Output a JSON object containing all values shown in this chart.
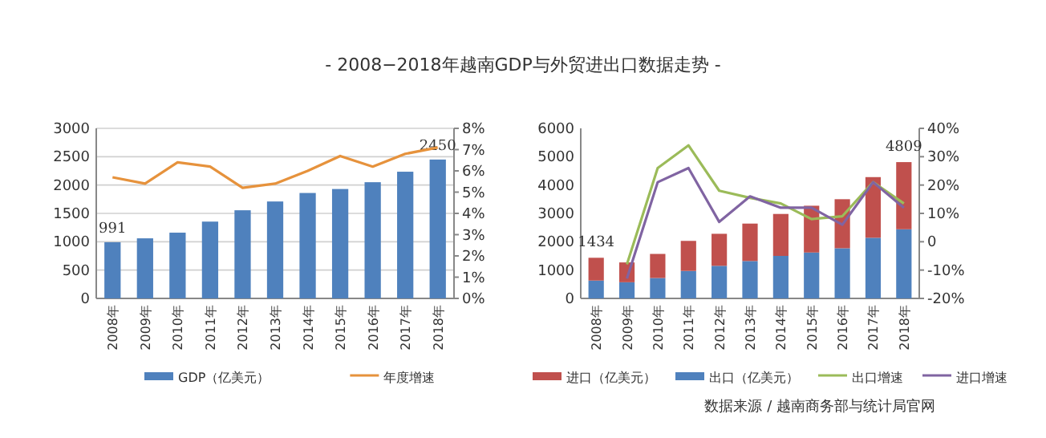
{
  "chart_data": [
    {
      "type": "bar",
      "title": "- 2008−2018年越南GDP与外贸进出口数据走势 -",
      "categories": [
        "2008年",
        "2009年",
        "2010年",
        "2011年",
        "2012年",
        "2013年",
        "2014年",
        "2015年",
        "2016年",
        "2017年",
        "2018年"
      ],
      "series": [
        {
          "name": "GDP（亿美元）",
          "color": "#4f81bd",
          "values": [
            991,
            1060,
            1160,
            1355,
            1555,
            1710,
            1860,
            1930,
            2050,
            2235,
            2450
          ],
          "value_labels": [
            "991",
            null,
            null,
            null,
            null,
            null,
            null,
            null,
            null,
            null,
            "2450"
          ]
        },
        {
          "name": "年度增速",
          "type": "line",
          "axis": "y2",
          "color": "#e6923c",
          "values": [
            5.7,
            5.4,
            6.4,
            6.2,
            5.2,
            5.4,
            6.0,
            6.7,
            6.2,
            6.8,
            7.1
          ]
        }
      ],
      "ylim": [
        0,
        3000
      ],
      "yticks": [
        0,
        500,
        1000,
        1500,
        2000,
        2500,
        3000
      ],
      "y2lim": [
        0,
        8
      ],
      "y2ticks": [
        {
          "value": 0,
          "label": "0%"
        },
        {
          "value": 1,
          "label": "1%"
        },
        {
          "value": 2,
          "label": "2%"
        },
        {
          "value": 3,
          "label": "3%"
        },
        {
          "value": 4,
          "label": "4%"
        },
        {
          "value": 5,
          "label": "5%"
        },
        {
          "value": 6,
          "label": "6%"
        },
        {
          "value": 7,
          "label": "7%"
        },
        {
          "value": 8,
          "label": "8%"
        }
      ],
      "grid": "y",
      "legend": "bottom"
    },
    {
      "type": "bar",
      "stacked": true,
      "categories": [
        "2008年",
        "2009年",
        "2010年",
        "2011年",
        "2012年",
        "2013年",
        "2014年",
        "2015年",
        "2016年",
        "2017年",
        "2018年"
      ],
      "series": [
        {
          "name": "出口（亿美元）",
          "color": "#4f81bd",
          "values": [
            630,
            570,
            720,
            970,
            1150,
            1320,
            1500,
            1620,
            1770,
            2140,
            2440
          ]
        },
        {
          "name": "进口（亿美元）",
          "color": "#c0504d",
          "values": [
            804,
            700,
            850,
            1060,
            1130,
            1320,
            1480,
            1650,
            1730,
            2140,
            2369
          ]
        },
        {
          "name": "出口增速",
          "type": "line",
          "axis": "y2",
          "color": "#9bbb59",
          "values": [
            null,
            -8,
            26,
            34,
            18,
            15.5,
            13.5,
            8,
            9,
            21,
            13.5
          ]
        },
        {
          "name": "进口增速",
          "type": "line",
          "axis": "y2",
          "color": "#8064a2",
          "values": [
            null,
            -13,
            21,
            26,
            7,
            16,
            12,
            12,
            6,
            21,
            12
          ]
        }
      ],
      "totals": [
        "1434",
        null,
        null,
        null,
        null,
        null,
        null,
        null,
        null,
        null,
        "4809"
      ],
      "ylim": [
        0,
        6000
      ],
      "yticks": [
        0,
        1000,
        2000,
        3000,
        4000,
        5000,
        6000
      ],
      "y2lim": [
        -20,
        40
      ],
      "y2ticks": [
        {
          "value": -20,
          "label": "-20%"
        },
        {
          "value": -10,
          "label": "-10%"
        },
        {
          "value": 0,
          "label": "0"
        },
        {
          "value": 10,
          "label": "10%"
        },
        {
          "value": 20,
          "label": "20%"
        },
        {
          "value": 30,
          "label": "30%"
        },
        {
          "value": 40,
          "label": "40%"
        }
      ],
      "grid": false,
      "legend": "bottom",
      "annotations": [
        "数据来源 / 越南商务部与统计局官网"
      ]
    }
  ]
}
